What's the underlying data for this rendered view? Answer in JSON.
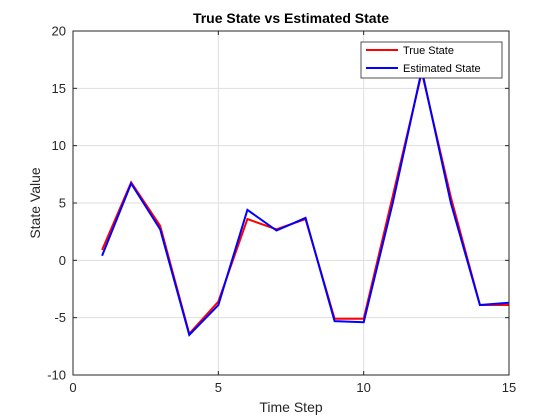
{
  "chart_data": {
    "type": "line",
    "title": "True State vs Estimated State",
    "xlabel": "Time Step",
    "ylabel": "State Value",
    "xlim": [
      0,
      15
    ],
    "ylim": [
      -10,
      20
    ],
    "xticks": [
      0,
      5,
      10,
      15
    ],
    "yticks": [
      -10,
      -5,
      0,
      5,
      10,
      15,
      20
    ],
    "grid": true,
    "legend_position": "top-right",
    "x": [
      1,
      2,
      3,
      4,
      5,
      6,
      7,
      8,
      9,
      10,
      11,
      12,
      13,
      14,
      15
    ],
    "series": [
      {
        "name": "True State",
        "color": "#ff0000",
        "values": [
          0.9,
          6.8,
          3.0,
          -6.4,
          -3.6,
          3.6,
          2.7,
          3.6,
          -5.1,
          -5.1,
          5.6,
          16.4,
          5.5,
          -3.9,
          -3.9
        ]
      },
      {
        "name": "Estimated State",
        "color": "#0000ff",
        "values": [
          0.4,
          6.7,
          2.7,
          -6.5,
          -3.9,
          4.4,
          2.6,
          3.7,
          -5.3,
          -5.4,
          5.0,
          16.6,
          5.0,
          -3.9,
          -3.7
        ]
      }
    ]
  }
}
